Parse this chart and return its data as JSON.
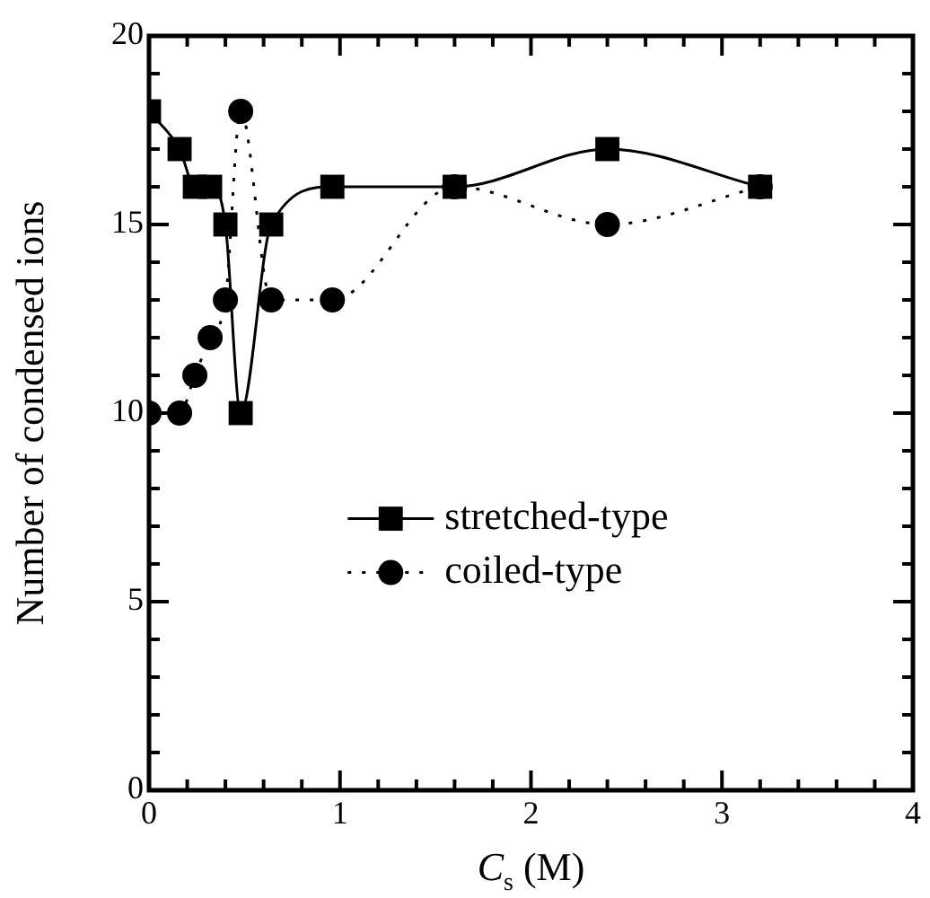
{
  "chart_data": {
    "type": "line",
    "xlabel": "C$_{s}$ (M)",
    "ylabel": "Number of condensed ions",
    "xlim": [
      0,
      4
    ],
    "xticks": [
      0,
      {
        "value": 0.2,
        "label": null
      },
      {
        "value": 0.4,
        "label": null
      },
      {
        "value": 0.6,
        "label": null
      },
      {
        "value": 0.8,
        "label": null
      },
      1,
      {
        "value": 1.2,
        "label": null
      },
      {
        "value": 1.4,
        "label": null
      },
      {
        "value": 1.6,
        "label": null
      },
      {
        "value": 1.8,
        "label": null
      },
      2,
      {
        "value": 2.2,
        "label": null
      },
      {
        "value": 2.4,
        "label": null
      },
      {
        "value": 2.6,
        "label": null
      },
      {
        "value": 2.8,
        "label": null
      },
      3,
      {
        "value": 3.2,
        "label": null
      },
      {
        "value": 3.4,
        "label": null
      },
      {
        "value": 3.6,
        "label": null
      },
      {
        "value": 3.8,
        "label": null
      },
      4
    ],
    "ylim": [
      0,
      20
    ],
    "yticks": [
      0,
      {
        "value": 1,
        "label": null
      },
      {
        "value": 2,
        "label": null
      },
      {
        "value": 3,
        "label": null
      },
      {
        "value": 4,
        "label": null
      },
      5,
      {
        "value": 6,
        "label": null
      },
      {
        "value": 7,
        "label": null
      },
      {
        "value": 8,
        "label": null
      },
      {
        "value": 9,
        "label": null
      },
      10,
      {
        "value": 11,
        "label": null
      },
      {
        "value": 12,
        "label": null
      },
      {
        "value": 13,
        "label": null
      },
      {
        "value": 14,
        "label": null
      },
      15,
      {
        "value": 16,
        "label": null
      },
      {
        "value": 17,
        "label": null
      },
      {
        "value": 18,
        "label": null
      },
      {
        "value": 19,
        "label": null
      },
      20
    ],
    "grid": false,
    "legend": "center right",
    "series": [
      {
        "name": "stretched-type",
        "color": "#000000",
        "marker": "square",
        "line_style": "solid",
        "x": [
          0,
          0.16,
          0.24,
          0.32,
          0.4,
          0.48,
          0.64,
          0.96,
          1.6,
          2.4,
          3.2
        ],
        "values": [
          18,
          17,
          16,
          16,
          15,
          10,
          15,
          16,
          16,
          17,
          16
        ]
      },
      {
        "name": "coiled-type",
        "color": "#000000",
        "marker": "circle",
        "line_style": "dotted",
        "x": [
          0,
          0.16,
          0.24,
          0.32,
          0.4,
          0.48,
          0.64,
          0.96,
          1.6,
          2.4,
          3.2
        ],
        "values": [
          10,
          10,
          11,
          12,
          13,
          18,
          13,
          13,
          16,
          15,
          16
        ]
      }
    ]
  }
}
